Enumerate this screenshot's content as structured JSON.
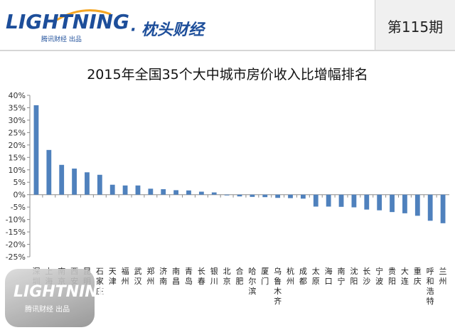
{
  "header": {
    "logo_text": "LIGHTNING",
    "logo_sub": "腾讯财经 出品",
    "brand_cn": "· 枕头财经",
    "issue_label": "第115期",
    "colors": {
      "brand": "#1d4e9a",
      "accent": "#f5a623"
    }
  },
  "watermark": {
    "text": "LIGHTNING",
    "sub": "腾讯财经 出品"
  },
  "chart_data": {
    "type": "bar",
    "title": "2015年全国35个大中城市房价收入比增幅排名",
    "xlabel": "",
    "ylabel": "",
    "ylim": [
      -25,
      40
    ],
    "yticks": [
      "40%",
      "35%",
      "30%",
      "25%",
      "20%",
      "15%",
      "10%",
      "5%",
      "0%",
      "-5%",
      "-10%",
      "-15%",
      "-20%",
      "-25%"
    ],
    "grid": false,
    "legend": "none",
    "bar_color": "#4f81bd",
    "categories": [
      "深圳",
      "上海",
      "南京",
      "西安",
      "昆明",
      "石家庄",
      "天津",
      "福州",
      "武汉",
      "郑州",
      "济南",
      "南昌",
      "青岛",
      "长春",
      "银川",
      "北京",
      "合肥",
      "哈尔滨",
      "厦门",
      "乌鲁木齐",
      "杭州",
      "成都",
      "太原",
      "海口",
      "南宁",
      "沈阳",
      "长沙",
      "宁波",
      "贵阳",
      "大连",
      "重庆",
      "呼和浩特",
      "兰州"
    ],
    "values": [
      36,
      18,
      12,
      10.5,
      9,
      8,
      4,
      3.7,
      3.7,
      2.4,
      2.2,
      1.8,
      1.7,
      1.2,
      0.9,
      -0.3,
      -0.7,
      -0.9,
      -1,
      -1.3,
      -1.4,
      -1.6,
      -4.8,
      -4.8,
      -4.9,
      -5.1,
      -6,
      -6.3,
      -7,
      -7.5,
      -8.5,
      -10.5,
      -11.5
    ]
  }
}
